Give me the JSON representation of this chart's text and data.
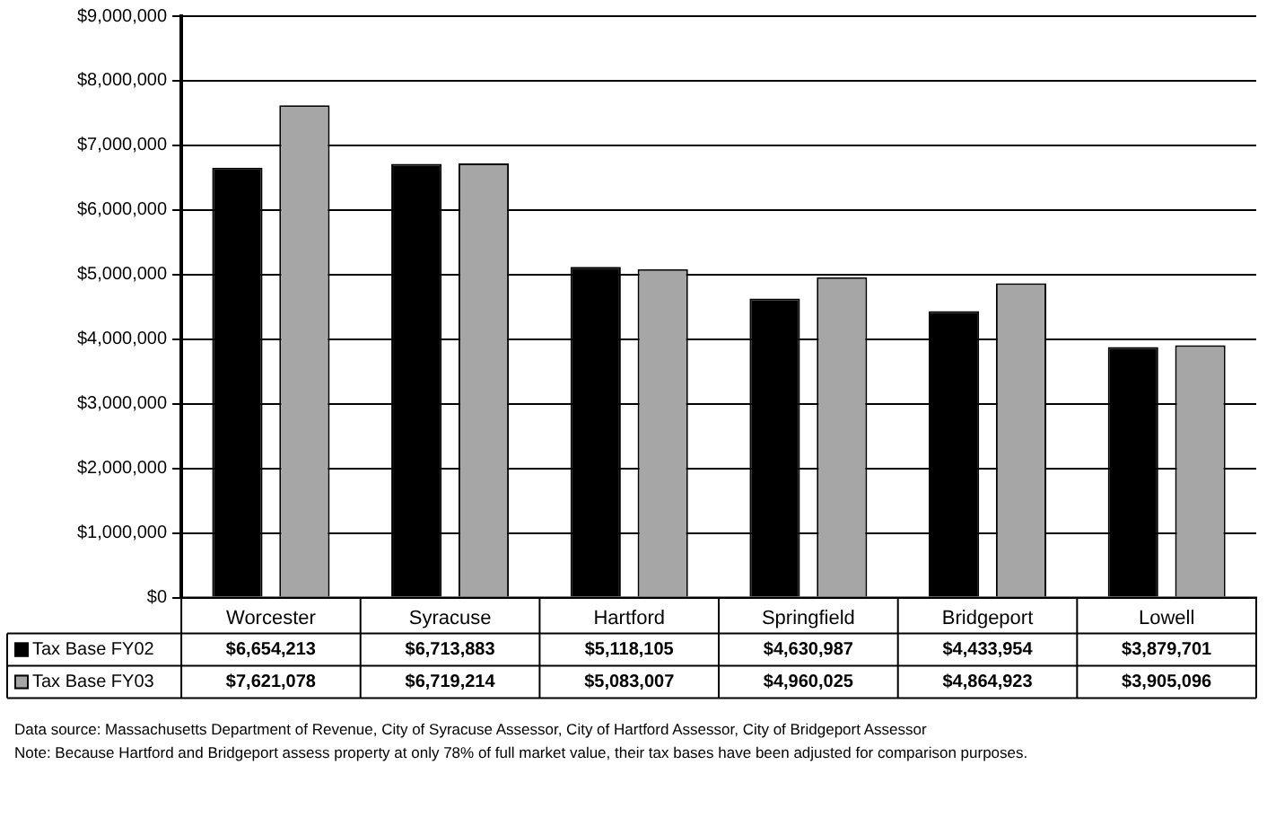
{
  "chart_data": {
    "type": "bar",
    "categories": [
      "Worcester",
      "Syracuse",
      "Hartford",
      "Springfield",
      "Bridgeport",
      "Lowell"
    ],
    "series": [
      {
        "name": "Tax Base FY02",
        "color": "#000000",
        "values": [
          6654213,
          6713883,
          5118105,
          4630987,
          4433954,
          3879701
        ],
        "value_labels": [
          "$6,654,213",
          "$6,713,883",
          "$5,118,105",
          "$4,630,987",
          "$4,433,954",
          "$3,879,701"
        ]
      },
      {
        "name": "Tax Base FY03",
        "color": "#a6a6a6",
        "values": [
          7621078,
          6719214,
          5083007,
          4960025,
          4864923,
          3905096
        ],
        "value_labels": [
          "$7,621,078",
          "$6,719,214",
          "$5,083,007",
          "$4,960,025",
          "$4,864,923",
          "$3,905,096"
        ]
      }
    ],
    "ylim": [
      0,
      9000000
    ],
    "yticks": [
      {
        "value": 0,
        "label": "$0"
      },
      {
        "value": 1000000,
        "label": "$1,000,000"
      },
      {
        "value": 2000000,
        "label": "$2,000,000"
      },
      {
        "value": 3000000,
        "label": "$3,000,000"
      },
      {
        "value": 4000000,
        "label": "$4,000,000"
      },
      {
        "value": 5000000,
        "label": "$5,000,000"
      },
      {
        "value": 6000000,
        "label": "$6,000,000"
      },
      {
        "value": 7000000,
        "label": "$7,000,000"
      },
      {
        "value": 8000000,
        "label": "$8,000,000"
      },
      {
        "value": 9000000,
        "label": "$9,000,000"
      }
    ],
    "grid": "y",
    "legend": "bottom left",
    "annotations": [
      "Data source: Massachusetts Department of Revenue, City of Syracuse Assessor, City of Hartford Assessor, City of Bridgeport Assessor",
      "Note: Because Hartford and Bridgeport assess property at only 78% of full market value, their tax bases have been adjusted for comparison purposes."
    ]
  }
}
